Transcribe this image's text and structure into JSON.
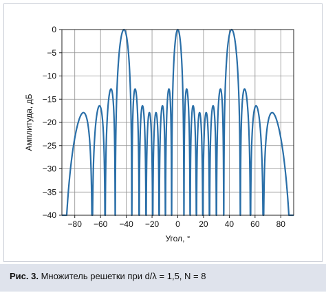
{
  "chart_data": {
    "type": "line",
    "title": "",
    "xlabel": "Угол, °",
    "ylabel": "Амплитуда, дБ",
    "xlim": [
      -90,
      90
    ],
    "ylim": [
      -40,
      0
    ],
    "x_ticks": [
      -80,
      -60,
      -40,
      -20,
      0,
      20,
      40,
      60,
      80
    ],
    "y_ticks": [
      0,
      -5,
      -10,
      -15,
      -20,
      -25,
      -30,
      -35,
      -40
    ],
    "x_tick_labels": [
      "−80",
      "−60",
      "−40",
      "−20",
      "0",
      "20",
      "40",
      "60",
      "80"
    ],
    "y_tick_labels": [
      "0",
      "−5",
      "−10",
      "−15",
      "−20",
      "−25",
      "−30",
      "−35",
      "−40"
    ],
    "grid": true,
    "series": [
      {
        "function": "array_factor",
        "d_over_lambda": 1.5,
        "N": 8,
        "floor_db": -40,
        "color": "#2a6fa8",
        "peaks": [
          {
            "x": -42,
            "y": 0
          },
          {
            "x": 0,
            "y": 0
          },
          {
            "x": 42,
            "y": 0
          }
        ],
        "sidelobe_levels_db": [
          -17.8,
          -16.1,
          -12.6,
          -16.1,
          -17.8,
          -17.8,
          -16.1,
          -12.6
        ]
      }
    ]
  },
  "caption": {
    "label": "Рис. 3.",
    "text": "Множитель решетки при d/λ = 1,5, N = 8"
  }
}
